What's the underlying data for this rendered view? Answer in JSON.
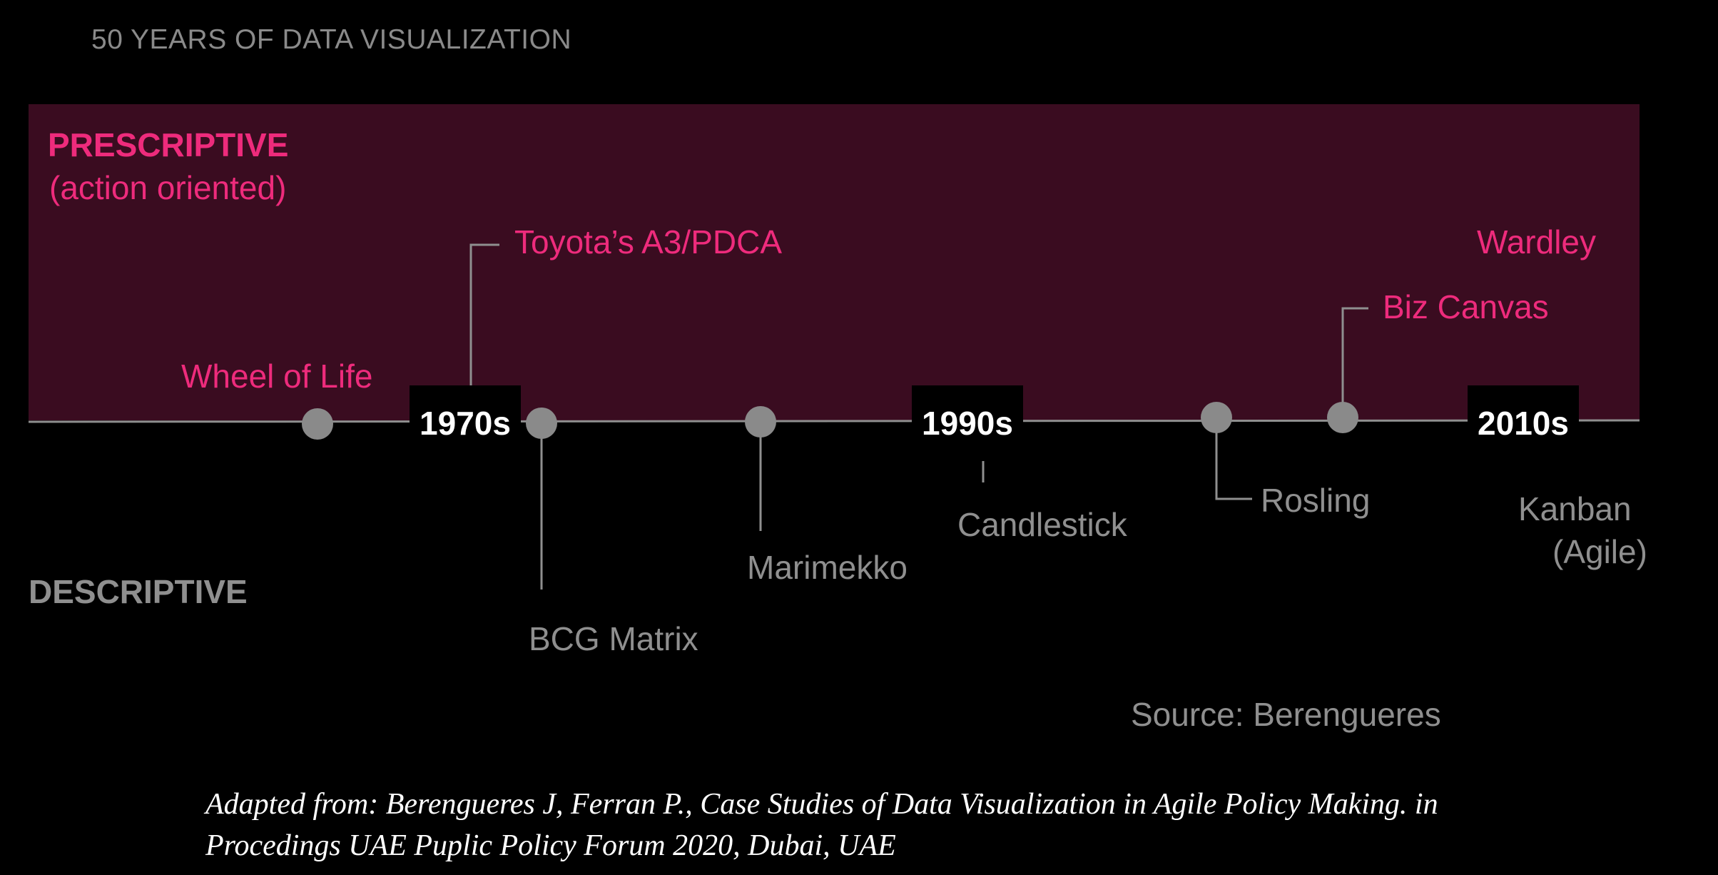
{
  "title": "50 YEARS OF DATA VISUALIZATION",
  "categories": {
    "prescriptive": "PRESCRIPTIVE",
    "prescriptive_sub": "(action oriented)",
    "descriptive": "DESCRIPTIVE"
  },
  "decades": [
    "1970s",
    "1990s",
    "2010s"
  ],
  "prescriptive_items": {
    "wheel_of_life": "Wheel of Life",
    "toyota": "Toyota’s A3/PDCA",
    "biz_canvas": "Biz Canvas",
    "wardley": "Wardley"
  },
  "descriptive_items": {
    "bcg": "BCG Matrix",
    "marimekko": "Marimekko",
    "candlestick": "Candlestick",
    "rosling": "Rosling",
    "kanban_line1": "Kanban",
    "kanban_line2": "(Agile)"
  },
  "source": "Source: Berengueres",
  "citation": "Adapted from: Berengueres J,  Ferran P., Case Studies of Data Visualization in Agile Policy Making. in Procedings UAE Puplic Policy Forum 2020, Dubai, UAE",
  "colors": {
    "background": "#000000",
    "band": "#3a0c20",
    "prescriptive": "#ee2b7c",
    "descriptive": "#8f8f8f"
  }
}
